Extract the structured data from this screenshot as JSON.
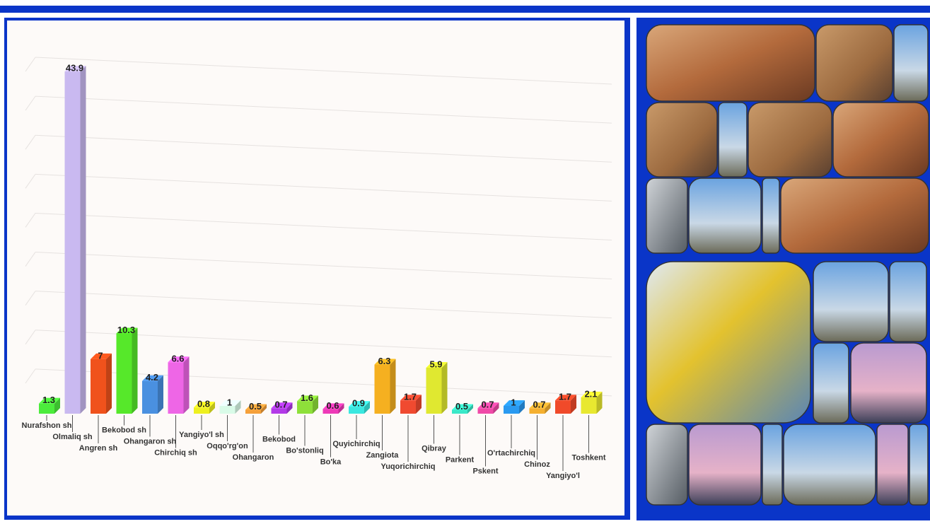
{
  "chart_data": {
    "type": "bar3d",
    "categories": [
      "Nurafshon sh",
      "Olmaliq sh",
      "Angren sh",
      "Bekobod sh",
      "Ohangaron sh",
      "Chirchiq sh",
      "Yangiyo'l sh",
      "Oqqo'rg'on",
      "Ohangaron",
      "Bekobod",
      "Bo'stonliq",
      "Bo'ka",
      "Quyichirchiq",
      "Zangiota",
      "Yuqorichirchiq",
      "Qibray",
      "Parkent",
      "Pskent",
      "O'rtachirchiq",
      "Chinoz",
      "Yangiyo'l",
      "Toshkent"
    ],
    "values": [
      1.3,
      43.9,
      7,
      10.3,
      4.2,
      6.6,
      0.8,
      1,
      0.5,
      0.7,
      1.6,
      0.6,
      0.9,
      6.3,
      1.7,
      5.9,
      0.5,
      0.7,
      1,
      0.7,
      1.7,
      2.1
    ],
    "colors": [
      "#4cec3c",
      "#c9b9f0",
      "#f0521c",
      "#56e82a",
      "#4a90e0",
      "#ee66e6",
      "#eef020",
      "#d9fbe8",
      "#f5a03a",
      "#b33ae8",
      "#8ee03a",
      "#ee3ab8",
      "#3ae8e0",
      "#f5b020",
      "#f04a30",
      "#e0e830",
      "#3ae8c8",
      "#f04aa8",
      "#2a9af0",
      "#f5b030",
      "#f04a2a",
      "#e8e830"
    ],
    "ylim": [
      0,
      45
    ],
    "grid": true
  }
}
